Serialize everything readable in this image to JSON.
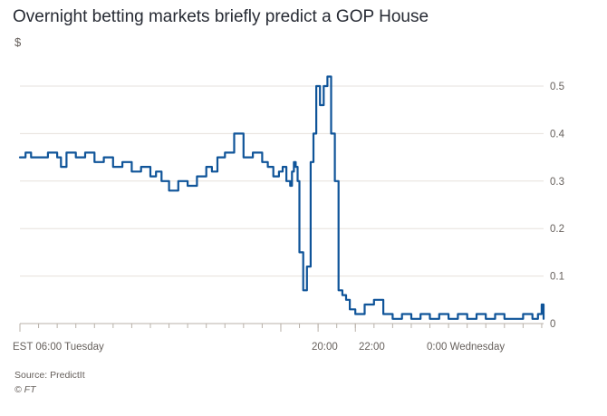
{
  "title": "Overnight betting markets briefly predict a GOP House",
  "unit": "$",
  "source": "Source: PredictIt",
  "credit": "© FT",
  "colors": {
    "line": "#0f5499",
    "grid": "#e6e1dc",
    "axis": "#b8b1a9",
    "text": "#66605c"
  },
  "chart_data": {
    "type": "line",
    "title": "Overnight betting markets briefly predict a GOP House",
    "ylabel": "$",
    "ylim": [
      0,
      0.5
    ],
    "yticks": [
      0,
      0.1,
      0.2,
      0.3,
      0.4,
      0.5
    ],
    "ytick_labels": [
      "0",
      "0.1",
      "0.2",
      "0.3",
      "0.4",
      "0.5"
    ],
    "x_unit": "hours since 06:00 Tuesday (EST)",
    "xlim": [
      0,
      28.1
    ],
    "xticks": [
      {
        "x": 0,
        "label": "EST 06:00 Tuesday"
      },
      {
        "x": 14,
        "label": "20:00"
      },
      {
        "x": 16,
        "label": "22:00"
      },
      {
        "x": 18,
        "label": "0:00 Wednesday"
      }
    ],
    "grid": true,
    "series": [
      {
        "x": [
          0,
          0.3,
          0.6,
          1,
          1.5,
          2,
          2.2,
          2.5,
          3,
          3.5,
          4,
          4.5,
          5,
          5.5,
          6,
          6.5,
          7,
          7.3,
          7.6,
          8,
          8.5,
          9,
          9.5,
          10,
          10.3,
          10.6,
          11,
          11.5,
          12,
          12.5,
          13,
          13.3,
          13.6,
          13.9,
          14.1,
          14.3,
          14.5,
          14.6,
          14.7,
          14.8,
          14.9,
          15.0,
          15.2,
          15.4,
          15.6,
          15.75,
          15.9,
          16.0,
          16.1,
          16.3,
          16.5,
          16.7,
          16.9,
          17.1,
          17.3,
          17.5,
          17.7,
          18,
          18.5,
          19,
          19.5,
          20,
          20.5,
          21,
          21.5,
          22,
          22.5,
          23,
          23.5,
          24,
          24.5,
          25,
          25.5,
          26,
          26.5,
          27,
          27.5,
          27.7,
          27.8,
          28.0,
          28.1
        ],
        "y": [
          0.35,
          0.36,
          0.35,
          0.35,
          0.36,
          0.35,
          0.33,
          0.36,
          0.35,
          0.36,
          0.34,
          0.35,
          0.33,
          0.34,
          0.32,
          0.33,
          0.31,
          0.32,
          0.3,
          0.28,
          0.3,
          0.29,
          0.31,
          0.33,
          0.32,
          0.35,
          0.36,
          0.4,
          0.35,
          0.36,
          0.34,
          0.33,
          0.31,
          0.32,
          0.33,
          0.3,
          0.29,
          0.32,
          0.34,
          0.33,
          0.3,
          0.15,
          0.07,
          0.12,
          0.34,
          0.4,
          0.5,
          0.5,
          0.46,
          0.5,
          0.52,
          0.4,
          0.3,
          0.07,
          0.06,
          0.05,
          0.03,
          0.02,
          0.04,
          0.05,
          0.02,
          0.01,
          0.02,
          0.01,
          0.02,
          0.01,
          0.02,
          0.01,
          0.02,
          0.01,
          0.02,
          0.01,
          0.02,
          0.01,
          0.01,
          0.02,
          0.01,
          0.01,
          0.02,
          0.04,
          0.01
        ]
      }
    ]
  }
}
